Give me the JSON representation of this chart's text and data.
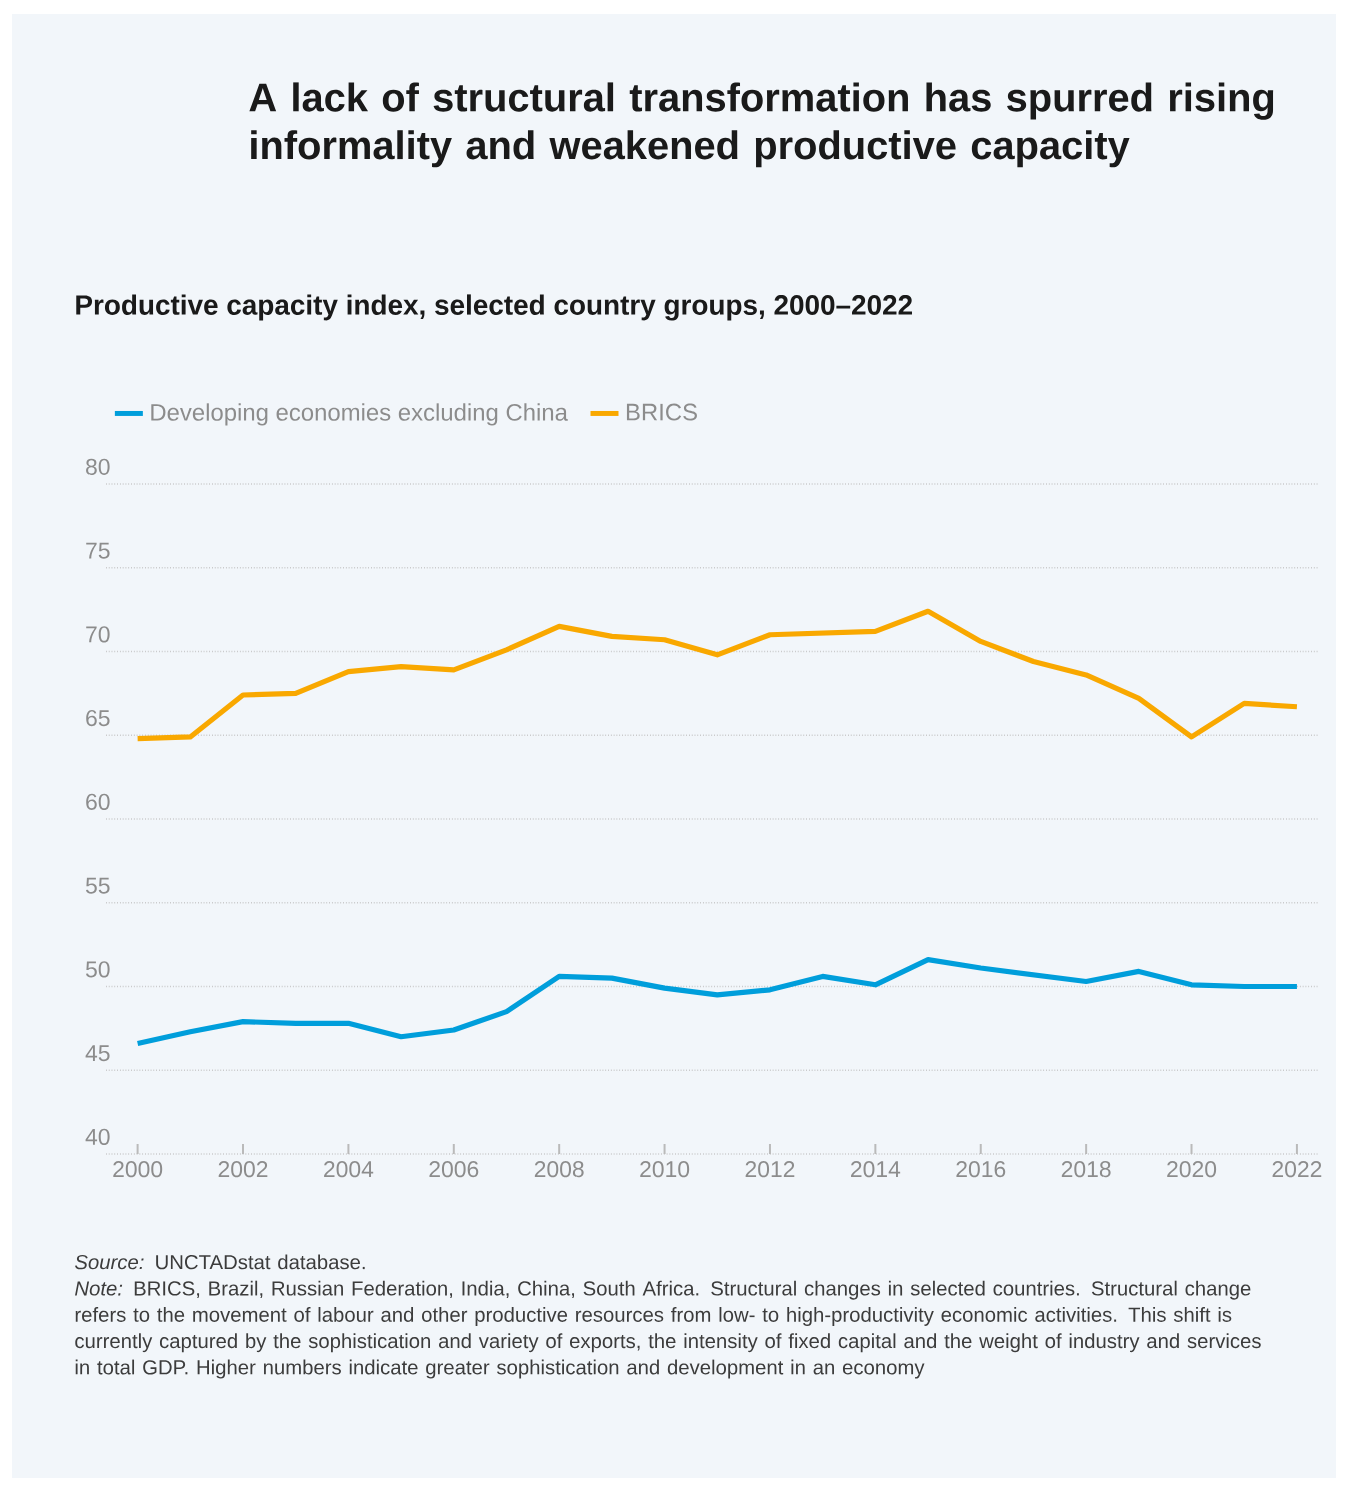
{
  "chart_data": {
    "type": "line",
    "title": "A lack of structural transformation has spurred rising informality and weakened productive capacity",
    "subtitle": "Productive capacity index, selected country groups, 2000–2022",
    "x": [
      2000,
      2001,
      2002,
      2003,
      2004,
      2005,
      2006,
      2007,
      2008,
      2009,
      2010,
      2011,
      2012,
      2013,
      2014,
      2015,
      2016,
      2017,
      2018,
      2019,
      2020,
      2021,
      2022
    ],
    "series": [
      {
        "name": "Developing economies excluding China",
        "color": "#009edb",
        "values": [
          46.6,
          47.3,
          47.9,
          47.8,
          47.8,
          47.0,
          47.4,
          48.5,
          50.6,
          50.5,
          49.9,
          49.5,
          49.8,
          50.6,
          50.1,
          51.6,
          51.1,
          50.7,
          50.3,
          50.9,
          50.1,
          50.0,
          50.0
        ]
      },
      {
        "name": "BRICS",
        "color": "#f9a800",
        "values": [
          64.8,
          64.9,
          67.4,
          67.5,
          68.8,
          69.1,
          68.9,
          70.1,
          71.5,
          70.9,
          70.7,
          69.8,
          71.0,
          71.1,
          71.2,
          72.4,
          70.6,
          69.4,
          68.6,
          67.2,
          64.9,
          66.9,
          66.7
        ]
      }
    ],
    "xlim": [
      1999.4,
      2022.4
    ],
    "xticks": [
      2000,
      2002,
      2004,
      2006,
      2008,
      2010,
      2012,
      2014,
      2016,
      2018,
      2020,
      2022
    ],
    "ylim": [
      40,
      80
    ],
    "yticks": [
      40,
      45,
      50,
      55,
      60,
      65,
      70,
      75,
      80
    ],
    "grid": "y",
    "legend": "top left",
    "marker": "none",
    "line_style": "solid",
    "annotations": [
      "*Source:* UNCTADstat database.",
      "*Note:* BRICS, Brazil, Russian Federation, India, China, South Africa. Structural changes in selected countries. Structural change refers to the movement of labour and other productive resources from low- to high-productivity economic activities. This shift is currently captured by the sophistication and variety of exports, the intensity of fixed capital and the weight of industry and services in total GDP. Higher numbers indicate greater sophistication and development in an economy"
    ]
  }
}
